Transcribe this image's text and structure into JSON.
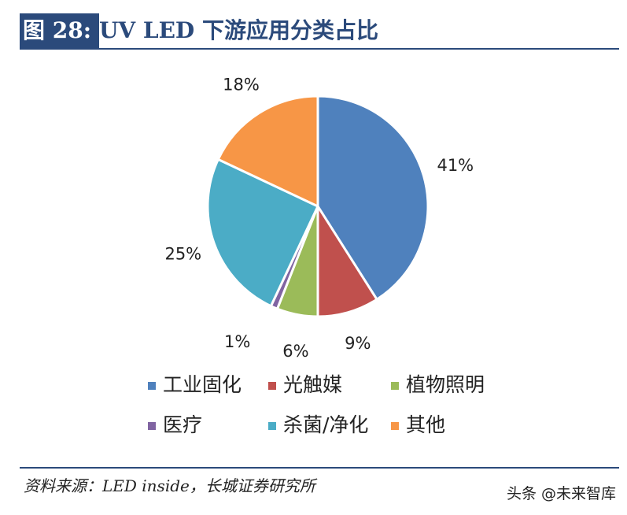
{
  "header": {
    "figure_label": "图 28:",
    "title": "UV LED 下游应用分类占比"
  },
  "footer": {
    "source": "资料来源：LED inside，长城证券研究所",
    "watermark": "头条 @未来智库"
  },
  "chart_data": {
    "type": "pie",
    "title": "",
    "slices": [
      {
        "name": "工业固化",
        "value": 41,
        "label": "41%",
        "color": "#4f81bd"
      },
      {
        "name": "光触媒",
        "value": 9,
        "label": "9%",
        "color": "#c0504d"
      },
      {
        "name": "植物照明",
        "value": 6,
        "label": "6%",
        "color": "#9bbb59"
      },
      {
        "name": "医疗",
        "value": 1,
        "label": "1%",
        "color": "#8064a2"
      },
      {
        "name": "杀菌/净化",
        "value": 25,
        "label": "25%",
        "color": "#4bacc6"
      },
      {
        "name": "其他",
        "value": 18,
        "label": "18%",
        "color": "#f79646"
      }
    ],
    "legend_position": "bottom"
  }
}
